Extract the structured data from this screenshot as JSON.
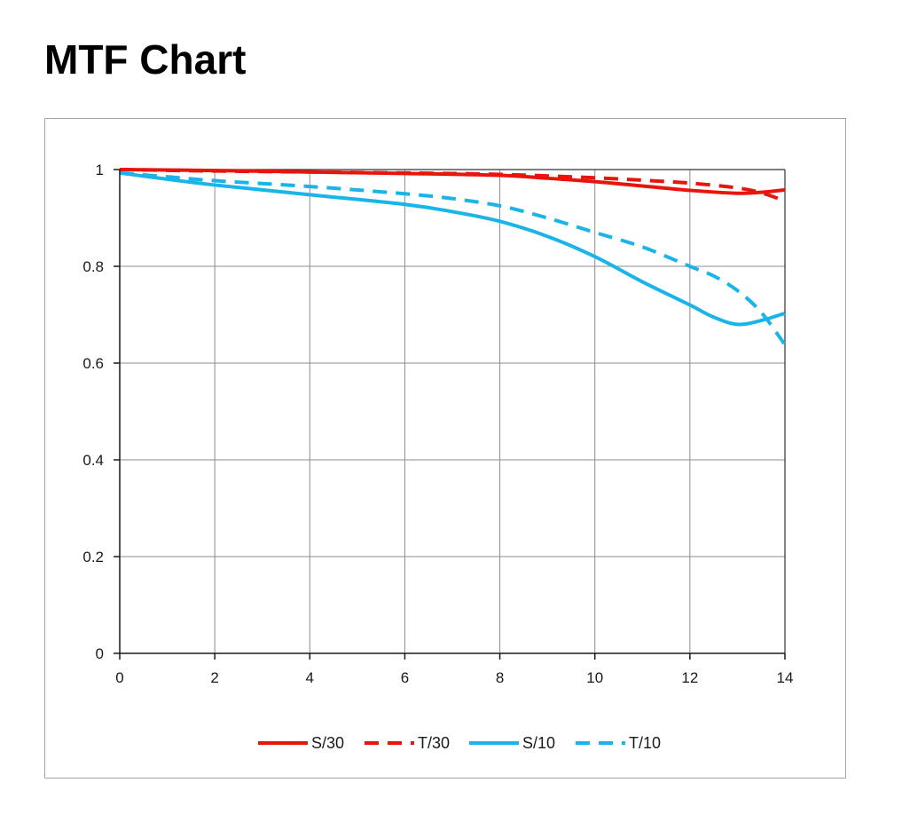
{
  "page": {
    "title": "MTF Chart"
  },
  "chart_data": {
    "type": "line",
    "title": "",
    "xlabel": "",
    "ylabel": "",
    "xlim": [
      0,
      14
    ],
    "ylim": [
      0,
      1
    ],
    "xticks": [
      0,
      2,
      4,
      6,
      8,
      10,
      12,
      14
    ],
    "yticks": [
      0,
      0.2,
      0.4,
      0.6,
      0.8,
      1
    ],
    "xtick_labels": [
      "0",
      "2",
      "4",
      "6",
      "8",
      "10",
      "12",
      "14"
    ],
    "ytick_labels": [
      "0",
      "0.2",
      "0.4",
      "0.6",
      "0.8",
      "1"
    ],
    "grid": true,
    "legend_position": "bottom",
    "series": [
      {
        "name": "S/30",
        "color": "#e8150c",
        "dash": "solid",
        "x": [
          0,
          2,
          4,
          6,
          8,
          9,
          10,
          11,
          12,
          13,
          13.5,
          14
        ],
        "y": [
          1.0,
          0.998,
          0.995,
          0.992,
          0.988,
          0.982,
          0.975,
          0.966,
          0.957,
          0.951,
          0.953,
          0.958
        ]
      },
      {
        "name": "T/30",
        "color": "#e8150c",
        "dash": "dashed",
        "x": [
          0,
          2,
          4,
          6,
          8,
          10,
          11,
          12,
          13,
          13.5,
          14
        ],
        "y": [
          1.0,
          0.997,
          0.995,
          0.993,
          0.99,
          0.983,
          0.978,
          0.972,
          0.962,
          0.952,
          0.935
        ]
      },
      {
        "name": "S/10",
        "color": "#1ab4e8",
        "dash": "solid",
        "x": [
          0,
          1,
          2,
          4,
          6,
          7,
          8,
          9,
          10,
          11,
          12,
          12.5,
          13,
          13.5,
          14
        ],
        "y": [
          0.993,
          0.98,
          0.968,
          0.948,
          0.928,
          0.913,
          0.893,
          0.862,
          0.82,
          0.768,
          0.72,
          0.695,
          0.68,
          0.688,
          0.703
        ]
      },
      {
        "name": "T/10",
        "color": "#1ab4e8",
        "dash": "dashed",
        "x": [
          0,
          1,
          2,
          4,
          6,
          7,
          8,
          9,
          10,
          11,
          12,
          12.5,
          13,
          13.5,
          14
        ],
        "y": [
          0.993,
          0.985,
          0.977,
          0.965,
          0.95,
          0.94,
          0.925,
          0.9,
          0.87,
          0.84,
          0.8,
          0.78,
          0.75,
          0.705,
          0.638
        ]
      }
    ]
  }
}
